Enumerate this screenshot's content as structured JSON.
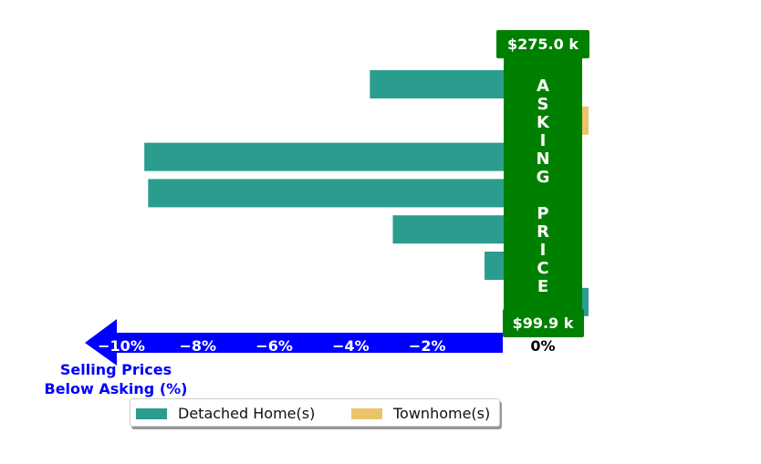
{
  "chart_data": {
    "type": "bar",
    "orientation": "horizontal",
    "series": [
      {
        "name": "Detached Home(s)",
        "color": "#2a9d8f",
        "values": [
          -3.5,
          0,
          -9.4,
          -9.3,
          -2.9,
          -0.5,
          0.1
        ]
      },
      {
        "name": "Townhome(s)",
        "color": "#e9c46a",
        "values": [
          0,
          0.1,
          0,
          0,
          0,
          0,
          0
        ]
      }
    ],
    "xlim": [
      -11,
      1.1
    ],
    "xticks": [
      "−10%",
      "−8%",
      "−6%",
      "−4%",
      "−2%",
      "0%"
    ],
    "xtick_values": [
      -10,
      -8,
      -6,
      -4,
      -2,
      0
    ],
    "xlabel": "Selling Prices\nBelow Asking (%)",
    "asking_price_label": "ASKING PRICE",
    "price_top": "$275.0 k",
    "price_bottom": "$99.9 k",
    "legend_placement": "bottom-center",
    "grid": false,
    "colors": {
      "axis_arrow": "#0000ff",
      "asking_band": "#008000"
    }
  }
}
